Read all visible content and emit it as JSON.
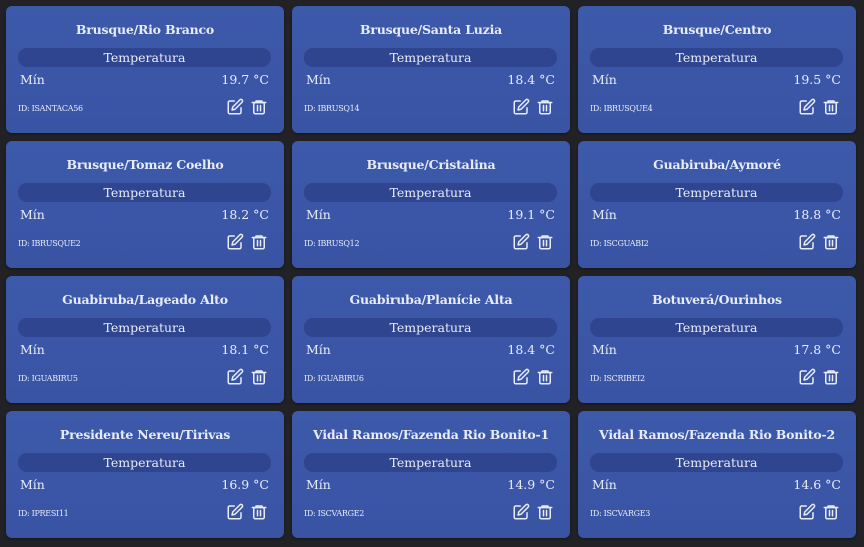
{
  "label_section": "Temperatura",
  "label_min": "Mín",
  "colors": {
    "background": "#222226",
    "card": "#3d59aa",
    "pill": "#2f4590",
    "text": "#e8ecf8"
  },
  "stations": [
    {
      "name": "Brusque/Rio Branco",
      "min": "19.7 °C",
      "id": "ID: ISANTACA56"
    },
    {
      "name": "Brusque/Santa Luzia",
      "min": "18.4 °C",
      "id": "ID: IBRUSQ14"
    },
    {
      "name": "Brusque/Centro",
      "min": "19.5 °C",
      "id": "ID: IBRUSQUE4"
    },
    {
      "name": "Brusque/Tomaz Coelho",
      "min": "18.2 °C",
      "id": "ID: IBRUSQUE2"
    },
    {
      "name": "Brusque/Cristalina",
      "min": "19.1 °C",
      "id": "ID: IBRUSQ12"
    },
    {
      "name": "Guabiruba/Aymoré",
      "min": "18.8 °C",
      "id": "ID: ISCGUABI2"
    },
    {
      "name": "Guabiruba/Lageado Alto",
      "min": "18.1 °C",
      "id": "ID: IGUABIRU5"
    },
    {
      "name": "Guabiruba/Planície Alta",
      "min": "18.4 °C",
      "id": "ID: IGUABIRU6"
    },
    {
      "name": "Botuverá/Ourinhos",
      "min": "17.8 °C",
      "id": "ID: ISCRIBEI2"
    },
    {
      "name": "Presidente Nereu/Tirivas",
      "min": "16.9 °C",
      "id": "ID: IPRESI11"
    },
    {
      "name": "Vidal Ramos/Fazenda Rio Bonito-1",
      "min": "14.9 °C",
      "id": "ID: ISCVARGE2"
    },
    {
      "name": "Vidal Ramos/Fazenda Rio Bonito-2",
      "min": "14.6 °C",
      "id": "ID: ISCVARGE3"
    }
  ]
}
